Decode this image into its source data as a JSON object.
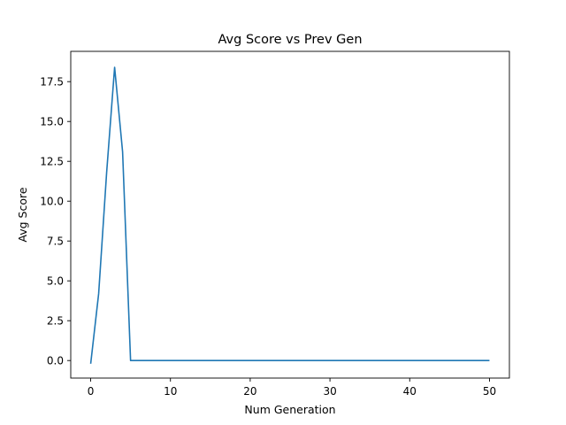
{
  "chart_data": {
    "type": "line",
    "title": "Avg Score vs Prev Gen",
    "xlabel": "Num Generation",
    "ylabel": "Avg Score",
    "xlim": [
      -2.5,
      52.5
    ],
    "ylim": [
      -1.1,
      19.4
    ],
    "xticks": [
      0,
      10,
      20,
      30,
      40,
      50
    ],
    "xtick_labels": [
      "0",
      "10",
      "20",
      "30",
      "40",
      "50"
    ],
    "yticks": [
      0.0,
      2.5,
      5.0,
      7.5,
      10.0,
      12.5,
      15.0,
      17.5
    ],
    "ytick_labels": [
      "0.0",
      "2.5",
      "5.0",
      "7.5",
      "10.0",
      "12.5",
      "15.0",
      "17.5"
    ],
    "grid": false,
    "series": [
      {
        "color": "#1f77b4",
        "x": [
          0,
          1,
          2,
          3,
          4,
          5,
          6,
          7,
          8,
          9,
          10,
          11,
          12,
          13,
          14,
          15,
          16,
          17,
          18,
          19,
          20,
          21,
          22,
          23,
          24,
          25,
          26,
          27,
          28,
          29,
          30,
          31,
          32,
          33,
          34,
          35,
          36,
          37,
          38,
          39,
          40,
          41,
          42,
          43,
          44,
          45,
          46,
          47,
          48,
          49,
          50
        ],
        "y": [
          -0.2,
          4.2,
          11.8,
          18.4,
          13.1,
          0.0,
          0,
          0,
          0,
          0,
          0,
          0,
          0,
          0,
          0,
          0,
          0,
          0,
          0,
          0,
          0,
          0,
          0,
          0,
          0,
          0,
          0,
          0,
          0,
          0,
          0,
          0,
          0,
          0,
          0,
          0,
          0,
          0,
          0,
          0,
          0,
          0,
          0,
          0,
          0,
          0,
          0,
          0,
          0,
          0,
          0
        ]
      }
    ]
  }
}
